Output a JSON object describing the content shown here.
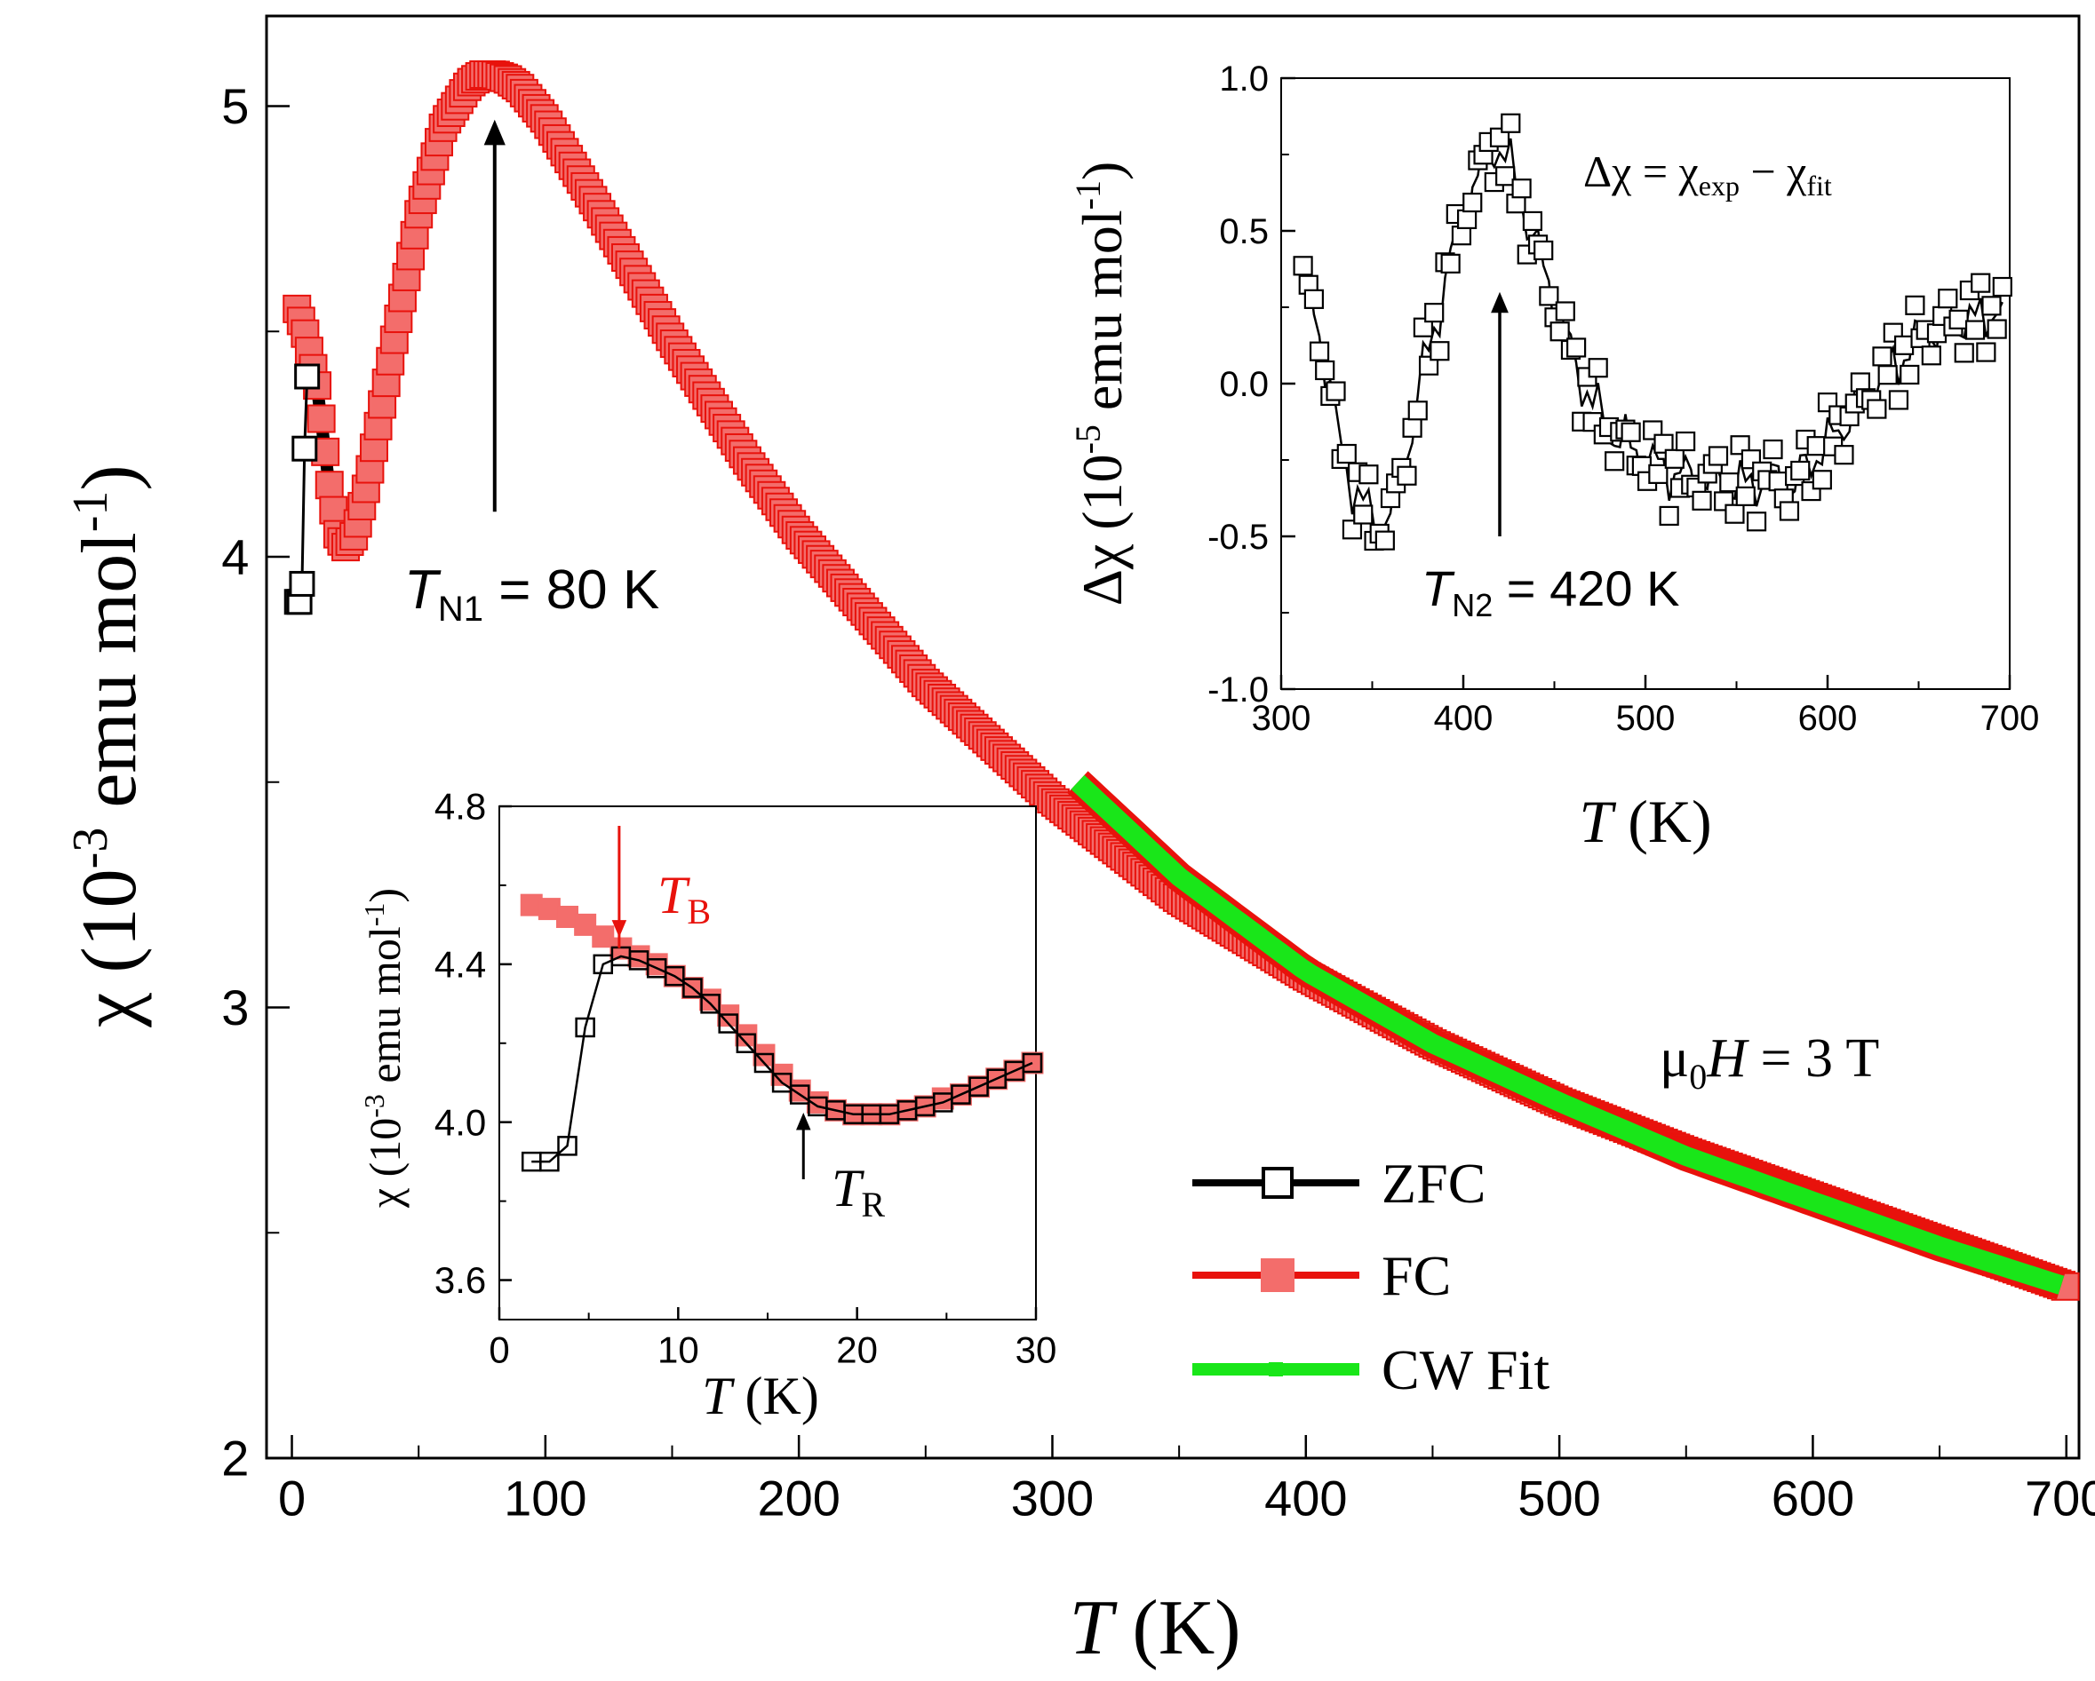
{
  "colors": {
    "zfc": "#000000",
    "fc_line": "#e8120c",
    "fc_fill": "#f36d6b",
    "cw_fit": "#19e619",
    "axis": "#000000",
    "tb_annotation": "#e8120c"
  },
  "chart_data": [
    {
      "id": "main",
      "type": "line",
      "xlabel_italic": "T",
      "xlabel_unit": " (K)",
      "ylabel_symbol": "χ (10",
      "ylabel_exp1": "-3",
      "ylabel_mid": " emu mol",
      "ylabel_exp2": "-1",
      "ylabel_end": ")",
      "xlim": [
        -10,
        705
      ],
      "ylim": [
        2,
        5.2
      ],
      "xticks": [
        0,
        100,
        200,
        300,
        400,
        500,
        600,
        700
      ],
      "xtick_labels": [
        "0",
        "100",
        "200",
        "300",
        "400",
        "500",
        "600",
        "700"
      ],
      "yticks": [
        2,
        3,
        4,
        5
      ],
      "ytick_labels": [
        "2",
        "3",
        "4",
        "5"
      ],
      "legend": {
        "position": "lower-right",
        "entries": [
          {
            "label": "ZFC",
            "series": "ZFC"
          },
          {
            "label": "FC",
            "series": "FC"
          },
          {
            "label": "CW Fit",
            "series": "CW Fit"
          }
        ]
      },
      "annotations": {
        "tn1_prefix": "T",
        "tn1_sub": "N1",
        "tn1_suffix": " = 80 K",
        "tn1_arrow_x": 80,
        "tn1_arrow_from_y": 4.1,
        "tn1_arrow_to_y": 4.97,
        "field_mu": "μ",
        "field_sub": "0",
        "field_H": "H",
        "field_suffix": " = 3 T"
      },
      "series": [
        {
          "name": "ZFC",
          "marker": "open-square",
          "x": [
            2,
            3,
            4,
            5,
            6
          ],
          "y": [
            3.9,
            3.9,
            3.94,
            4.24,
            4.4
          ]
        },
        {
          "name": "FC",
          "marker": "filled-square",
          "x": [
            2,
            5,
            10,
            15,
            18,
            21,
            25,
            30,
            40,
            50,
            60,
            70,
            75,
            80,
            85,
            90,
            100,
            120,
            150,
            180,
            200,
            250,
            300,
            350,
            400,
            450,
            500,
            550,
            600,
            650,
            700
          ],
          "y": [
            4.55,
            4.5,
            4.38,
            4.15,
            4.05,
            4.02,
            4.05,
            4.17,
            4.47,
            4.76,
            4.96,
            5.05,
            5.07,
            5.07,
            5.06,
            5.04,
            4.97,
            4.78,
            4.48,
            4.21,
            4.05,
            3.72,
            3.46,
            3.24,
            3.07,
            2.92,
            2.79,
            2.68,
            2.58,
            2.48,
            2.38
          ]
        },
        {
          "name": "CW Fit",
          "marker": "line",
          "x": [
            310,
            350,
            400,
            450,
            500,
            550,
            600,
            650,
            700
          ],
          "y": [
            3.5,
            3.29,
            3.08,
            2.92,
            2.79,
            2.67,
            2.57,
            2.47,
            2.38
          ]
        }
      ]
    },
    {
      "id": "inset_top_right",
      "type": "scatter",
      "xlabel_italic": "T",
      "xlabel_unit": " (K)",
      "ylabel_symbol": "Δχ (10",
      "ylabel_exp1": "-5",
      "ylabel_mid": " emu mol",
      "ylabel_exp2": "-1",
      "ylabel_end": ")",
      "xlim": [
        300,
        700
      ],
      "ylim": [
        -1.0,
        1.0
      ],
      "xticks": [
        300,
        400,
        500,
        600,
        700
      ],
      "xtick_labels": [
        "300",
        "400",
        "500",
        "600",
        "700"
      ],
      "yticks": [
        -1.0,
        -0.5,
        0.0,
        0.5,
        1.0
      ],
      "ytick_labels": [
        "-1.0",
        "-0.5",
        "0.0",
        "0.5",
        "1.0"
      ],
      "formula": {
        "lhs": "Δχ = χ",
        "sub1": "exp",
        "mid": " − χ",
        "sub2": "fit"
      },
      "annotations": {
        "tn2_prefix": "T",
        "tn2_sub": "N2",
        "tn2_suffix": " = 420 K",
        "tn2_arrow_x": 420,
        "tn2_arrow_from_y": -0.5,
        "tn2_arrow_to_y": 0.3
      },
      "series": [
        {
          "name": "Δχ",
          "marker": "open-square",
          "x": [
            312,
            318,
            325,
            332,
            340,
            348,
            355,
            362,
            370,
            378,
            385,
            392,
            400,
            408,
            415,
            420,
            425,
            432,
            440,
            448,
            455,
            462,
            470,
            480,
            490,
            500,
            510,
            520,
            530,
            540,
            550,
            560,
            570,
            580,
            590,
            600,
            610,
            620,
            630,
            640,
            650,
            660,
            670,
            680,
            690,
            698
          ],
          "y": [
            0.32,
            0.25,
            0.05,
            -0.2,
            -0.35,
            -0.42,
            -0.48,
            -0.4,
            -0.2,
            0.05,
            0.2,
            0.38,
            0.55,
            0.68,
            0.76,
            0.78,
            0.72,
            0.6,
            0.45,
            0.3,
            0.18,
            0.05,
            -0.05,
            -0.15,
            -0.2,
            -0.25,
            -0.28,
            -0.3,
            -0.32,
            -0.3,
            -0.34,
            -0.32,
            -0.3,
            -0.36,
            -0.25,
            -0.2,
            -0.12,
            -0.05,
            0.02,
            0.08,
            0.15,
            0.18,
            0.22,
            0.2,
            0.24,
            0.22
          ]
        }
      ]
    },
    {
      "id": "inset_bottom_left",
      "type": "line",
      "xlabel_italic": "T",
      "xlabel_unit": " (K)",
      "ylabel_symbol": "χ (10",
      "ylabel_exp1": "-3",
      "ylabel_mid": " emu mol",
      "ylabel_exp2": "-1",
      "ylabel_end": ")",
      "xlim": [
        0,
        30
      ],
      "ylim": [
        3.5,
        4.8
      ],
      "xticks": [
        0,
        10,
        20,
        30
      ],
      "xtick_labels": [
        "0",
        "10",
        "20",
        "30"
      ],
      "yticks": [
        3.6,
        4.0,
        4.4,
        4.8
      ],
      "ytick_labels": [
        "3.6",
        "4.0",
        "4.4",
        "4.8"
      ],
      "annotations": {
        "tb_prefix": "T",
        "tb_sub": "B",
        "tb_x": 6.7,
        "tr_prefix": "T",
        "tr_sub": "R",
        "tr_x": 17
      },
      "series": [
        {
          "name": "ZFC",
          "marker": "open-square",
          "x": [
            1.8,
            2.8,
            3.8,
            4.8,
            5.8,
            6.8,
            7.8,
            8.8,
            9.8,
            10.8,
            11.8,
            12.8,
            13.8,
            14.8,
            15.8,
            16.8,
            17.8,
            18.8,
            19.8,
            20.8,
            21.8,
            22.8,
            23.8,
            24.8,
            25.8,
            26.8,
            27.8,
            28.8,
            29.8
          ],
          "y": [
            3.9,
            3.9,
            3.94,
            4.24,
            4.4,
            4.42,
            4.41,
            4.39,
            4.37,
            4.34,
            4.3,
            4.25,
            4.2,
            4.15,
            4.1,
            4.07,
            4.04,
            4.03,
            4.02,
            4.02,
            4.02,
            4.03,
            4.04,
            4.05,
            4.07,
            4.09,
            4.11,
            4.13,
            4.15
          ]
        },
        {
          "name": "FC",
          "marker": "filled-square",
          "x": [
            1.8,
            2.8,
            3.8,
            4.8,
            5.8,
            6.8,
            7.8,
            8.8,
            9.8,
            10.8,
            11.8,
            12.8,
            13.8,
            14.8,
            15.8,
            16.8,
            17.8,
            18.8,
            19.8,
            20.8,
            21.8,
            22.8,
            23.8,
            24.8,
            25.8,
            26.8,
            27.8,
            28.8,
            29.8
          ],
          "y": [
            4.55,
            4.54,
            4.52,
            4.5,
            4.47,
            4.44,
            4.42,
            4.4,
            4.37,
            4.34,
            4.31,
            4.27,
            4.22,
            4.17,
            4.12,
            4.08,
            4.05,
            4.03,
            4.02,
            4.02,
            4.02,
            4.03,
            4.04,
            4.06,
            4.07,
            4.09,
            4.11,
            4.13,
            4.15
          ]
        }
      ]
    }
  ]
}
